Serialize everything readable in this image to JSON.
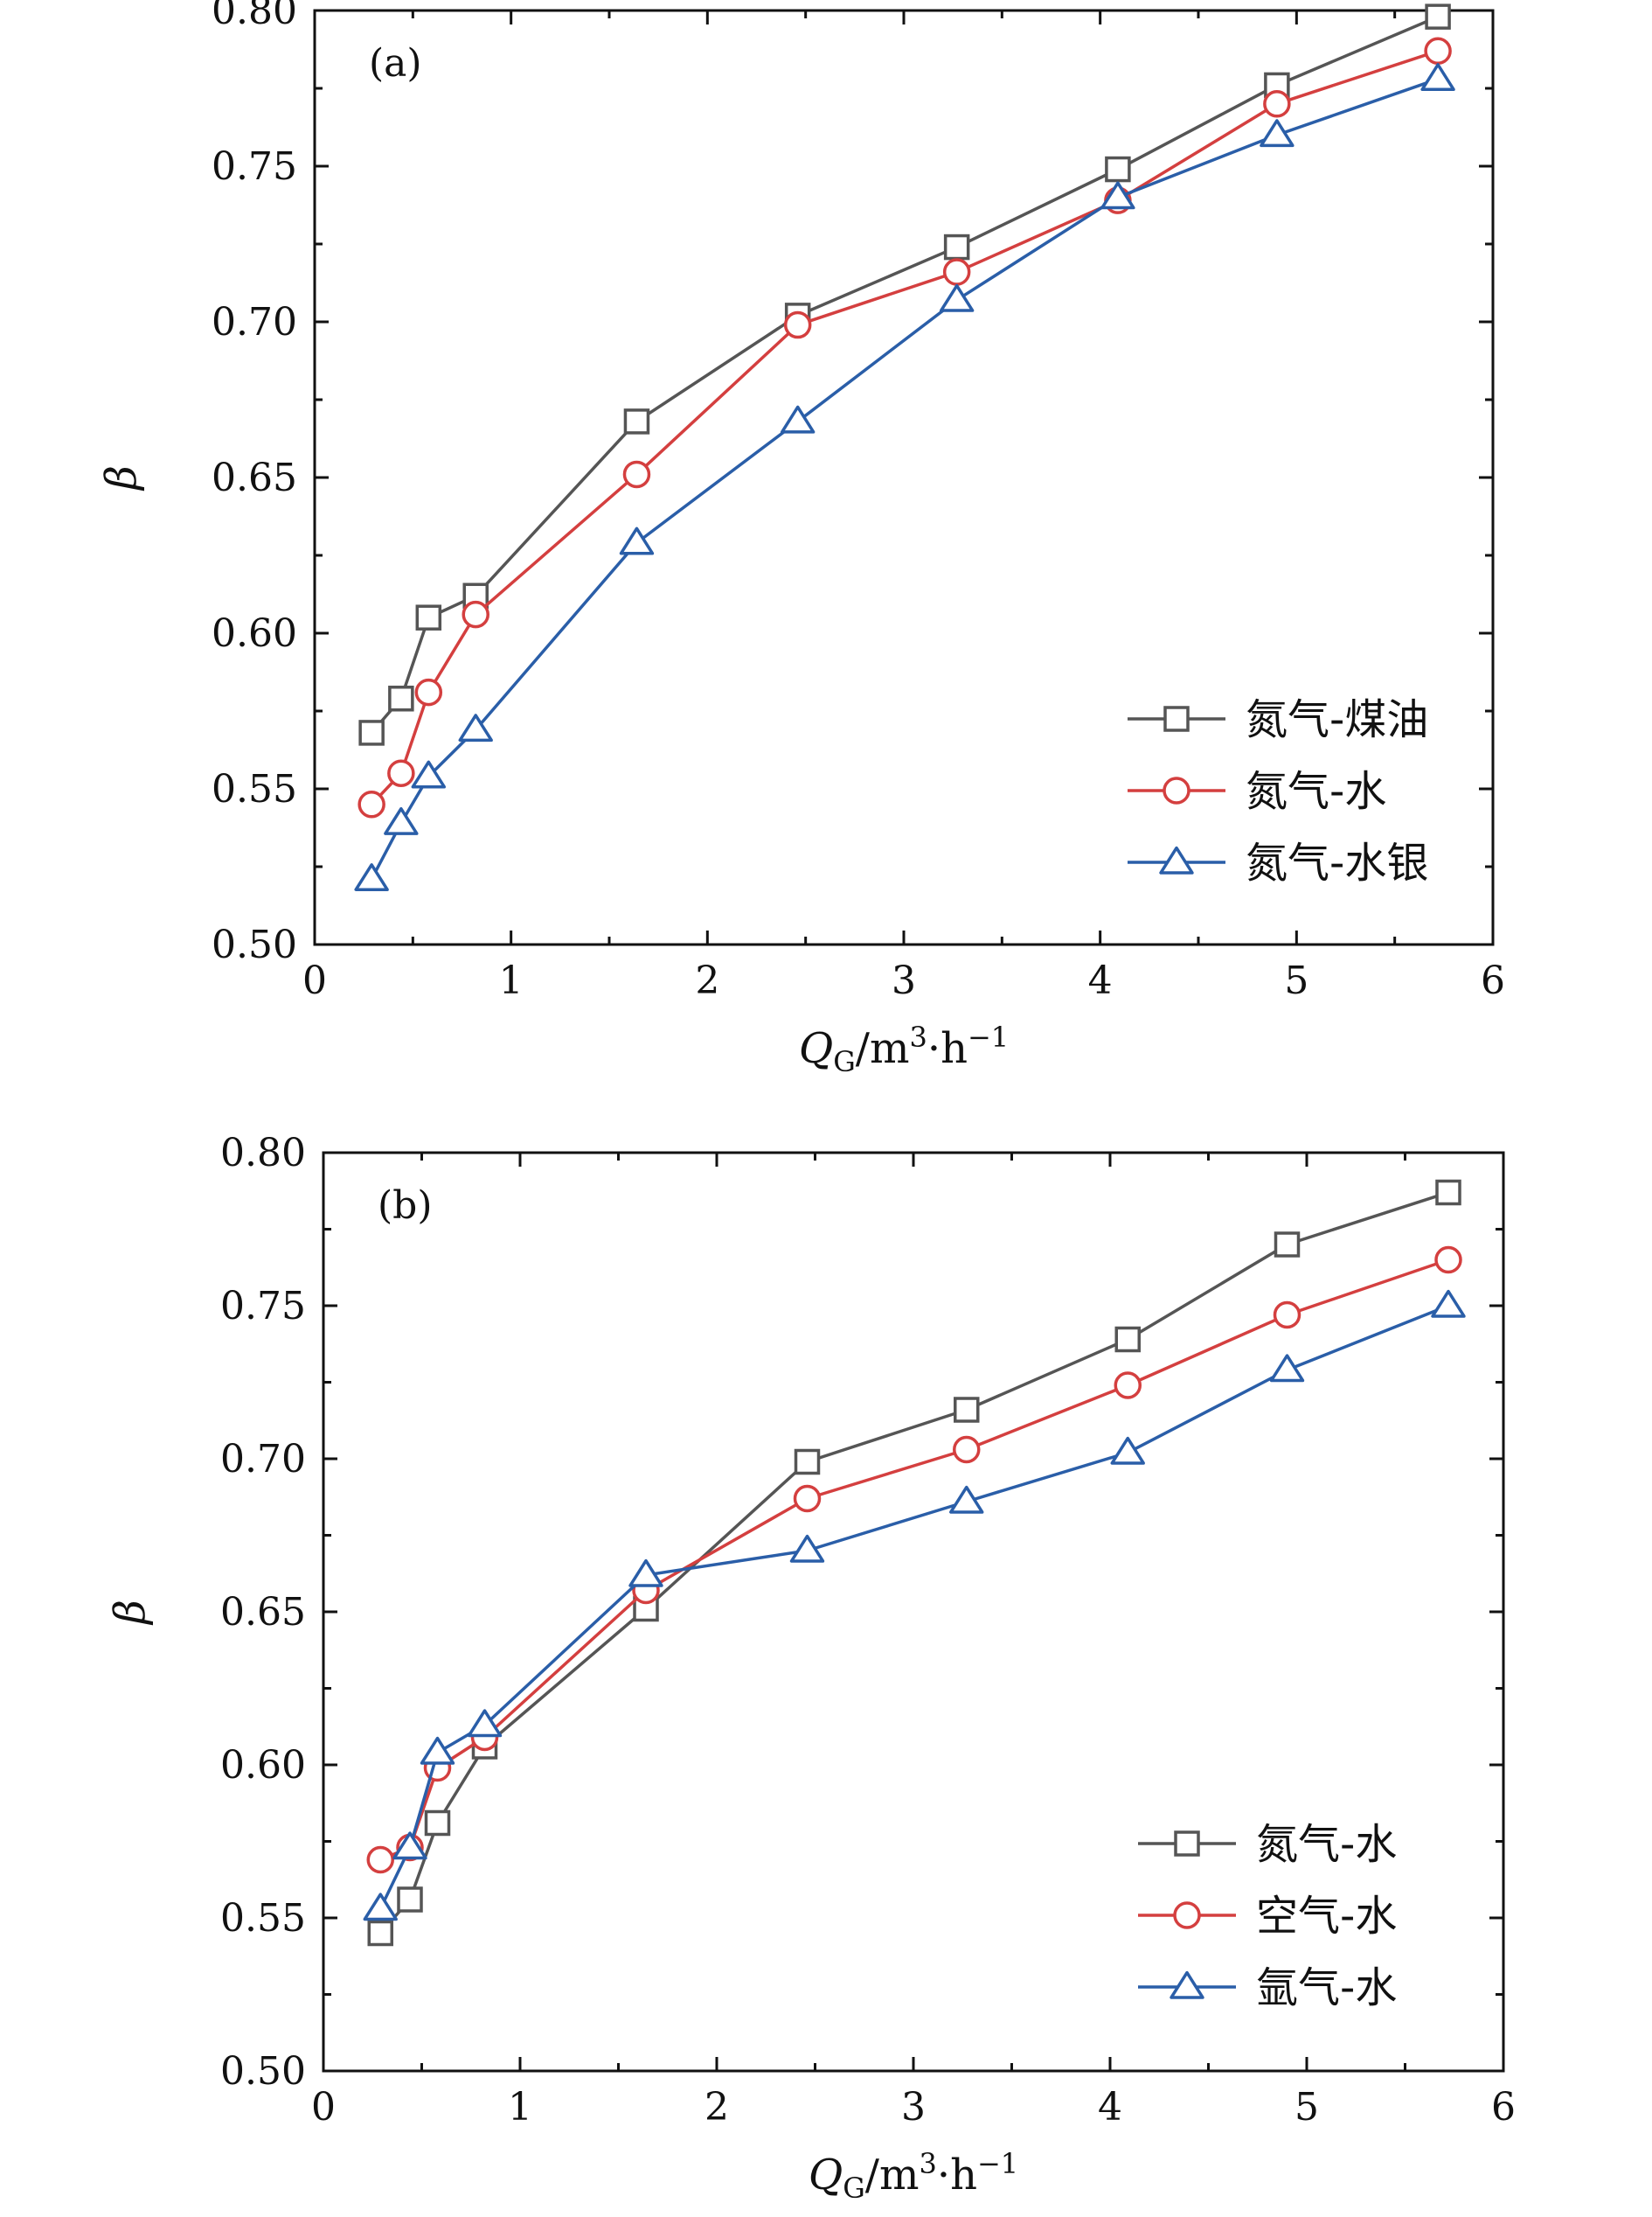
{
  "chart_data": [
    {
      "type": "line",
      "panel_label": "(a)",
      "xlabel": "QG/m3·h−1",
      "ylabel": "β",
      "xlim": [
        0,
        6
      ],
      "ylim": [
        0.5,
        0.8
      ],
      "xticks": [
        "0",
        "1",
        "2",
        "3",
        "4",
        "5",
        "6"
      ],
      "yticks": [
        "0.50",
        "0.55",
        "0.60",
        "0.65",
        "0.70",
        "0.75",
        "0.80"
      ],
      "legend_position": "lower-right",
      "x": [
        0.29,
        0.44,
        0.58,
        0.82,
        1.64,
        2.46,
        3.27,
        4.09,
        4.9,
        5.72
      ],
      "series": [
        {
          "name": "氮气-煤油",
          "marker": "square",
          "color": "#555555",
          "values": [
            0.568,
            0.579,
            0.605,
            0.612,
            0.668,
            0.702,
            0.724,
            0.749,
            0.776,
            0.798
          ]
        },
        {
          "name": "氮气-水",
          "marker": "circle",
          "color": "#d43f3f",
          "values": [
            0.545,
            0.555,
            0.581,
            0.606,
            0.651,
            0.699,
            0.716,
            0.739,
            0.77,
            0.787
          ]
        },
        {
          "name": "氮气-水银",
          "marker": "triangle",
          "color": "#2a5ea8",
          "values": [
            0.521,
            0.539,
            0.554,
            0.569,
            0.629,
            0.668,
            0.707,
            0.74,
            0.76,
            0.778
          ]
        }
      ]
    },
    {
      "type": "line",
      "panel_label": "(b)",
      "xlabel": "QG/m3·h−1",
      "ylabel": "β",
      "xlim": [
        0,
        6
      ],
      "ylim": [
        0.5,
        0.8
      ],
      "xticks": [
        "0",
        "1",
        "2",
        "3",
        "4",
        "5",
        "6"
      ],
      "yticks": [
        "0.50",
        "0.55",
        "0.60",
        "0.65",
        "0.70",
        "0.75",
        "0.80"
      ],
      "legend_position": "lower-right",
      "x": [
        0.29,
        0.44,
        0.58,
        0.82,
        1.64,
        2.46,
        3.27,
        4.09,
        4.9,
        5.72
      ],
      "series": [
        {
          "name": "氮气-水",
          "marker": "square",
          "color": "#555555",
          "values": [
            0.545,
            0.556,
            0.581,
            0.606,
            0.651,
            0.699,
            0.716,
            0.739,
            0.77,
            0.787
          ]
        },
        {
          "name": "空气-水",
          "marker": "circle",
          "color": "#d43f3f",
          "values": [
            0.569,
            0.573,
            0.599,
            0.609,
            0.657,
            0.687,
            0.703,
            0.724,
            0.747,
            0.765
          ]
        },
        {
          "name": "氩气-水",
          "marker": "triangle",
          "color": "#2a5ea8",
          "values": [
            0.553,
            0.573,
            0.604,
            0.613,
            0.662,
            0.67,
            0.686,
            0.702,
            0.729,
            0.75
          ]
        }
      ]
    }
  ]
}
